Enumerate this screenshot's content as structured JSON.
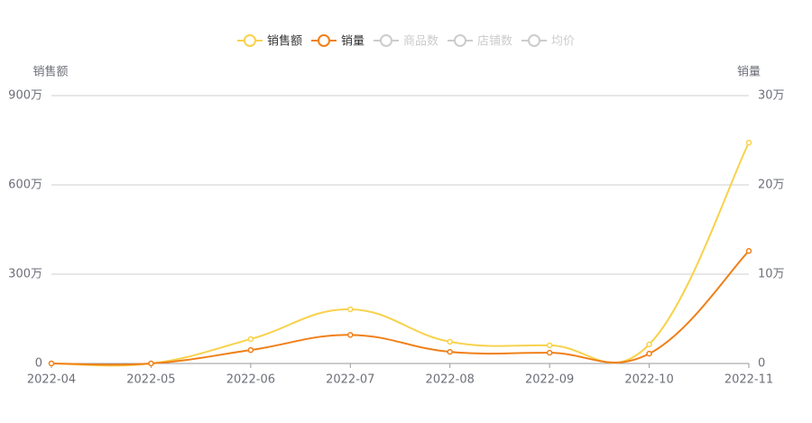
{
  "chart_data": {
    "type": "line",
    "smooth": true,
    "y_axis_label": "销售额",
    "y2_axis_label": "销量",
    "categories": [
      "2022-04",
      "2022-05",
      "2022-06",
      "2022-07",
      "2022-08",
      "2022-09",
      "2022-10",
      "2022-11"
    ],
    "series": [
      {
        "name": "销售额",
        "color": "#f8d24c",
        "visible": true,
        "values": [
          0,
          0,
          82,
          182,
          73,
          61,
          64,
          742
        ]
      },
      {
        "name": "销量",
        "color": "#f08019",
        "visible": true,
        "axis": "y2",
        "values": [
          0,
          0,
          1.5,
          3.2,
          1.3,
          1.2,
          1.1,
          12.6
        ]
      },
      {
        "name": "商品数",
        "color": "#cccccc",
        "visible": false
      },
      {
        "name": "店铺数",
        "color": "#cccccc",
        "visible": false
      },
      {
        "name": "均价",
        "color": "#cccccc",
        "visible": false
      }
    ],
    "ylim": [
      0,
      900
    ],
    "yticks": [
      0,
      {
        "value": 300,
        "label": "300万"
      },
      {
        "value": 600,
        "label": "600万"
      },
      {
        "value": 900,
        "label": "900万"
      }
    ],
    "y2lim": [
      0,
      30
    ],
    "y2ticks": [
      0,
      {
        "value": 10,
        "label": "10万"
      },
      {
        "value": 20,
        "label": "20万"
      },
      {
        "value": 30,
        "label": "30万"
      }
    ],
    "grid": true
  }
}
